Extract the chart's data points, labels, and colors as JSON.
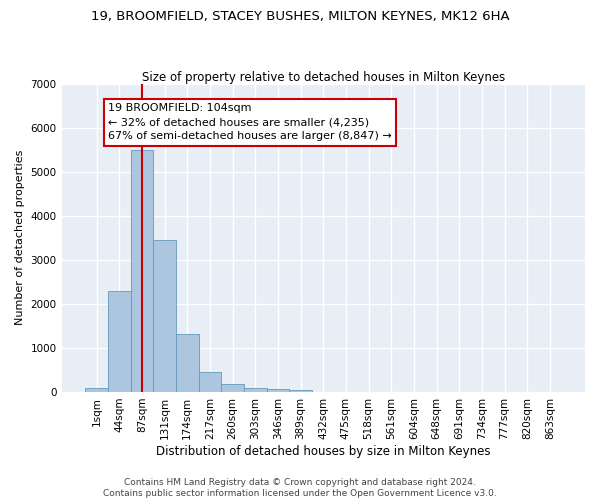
{
  "title": "19, BROOMFIELD, STACEY BUSHES, MILTON KEYNES, MK12 6HA",
  "subtitle": "Size of property relative to detached houses in Milton Keynes",
  "xlabel": "Distribution of detached houses by size in Milton Keynes",
  "ylabel": "Number of detached properties",
  "footer_line1": "Contains HM Land Registry data © Crown copyright and database right 2024.",
  "footer_line2": "Contains public sector information licensed under the Open Government Licence v3.0.",
  "bar_labels": [
    "1sqm",
    "44sqm",
    "87sqm",
    "131sqm",
    "174sqm",
    "217sqm",
    "260sqm",
    "303sqm",
    "346sqm",
    "389sqm",
    "432sqm",
    "475sqm",
    "518sqm",
    "561sqm",
    "604sqm",
    "648sqm",
    "691sqm",
    "734sqm",
    "777sqm",
    "820sqm",
    "863sqm"
  ],
  "bar_values": [
    80,
    2280,
    5480,
    3450,
    1310,
    460,
    175,
    95,
    65,
    40,
    0,
    0,
    0,
    0,
    0,
    0,
    0,
    0,
    0,
    0,
    0
  ],
  "bar_color": "#adc6e0",
  "bar_edge_color": "#6699bb",
  "background_color": "#e8eef5",
  "grid_color": "#ffffff",
  "annotation_text": "19 BROOMFIELD: 104sqm\n← 32% of detached houses are smaller (4,235)\n67% of semi-detached houses are larger (8,847) →",
  "annotation_box_color": "#ffffff",
  "annotation_border_color": "#cc0000",
  "red_line_x": 2,
  "ylim": [
    0,
    7000
  ],
  "yticks": [
    0,
    1000,
    2000,
    3000,
    4000,
    5000,
    6000,
    7000
  ],
  "title_fontsize": 9.5,
  "subtitle_fontsize": 8.5,
  "xlabel_fontsize": 8.5,
  "ylabel_fontsize": 8,
  "tick_fontsize": 7.5,
  "annotation_fontsize": 8,
  "footer_fontsize": 6.5
}
